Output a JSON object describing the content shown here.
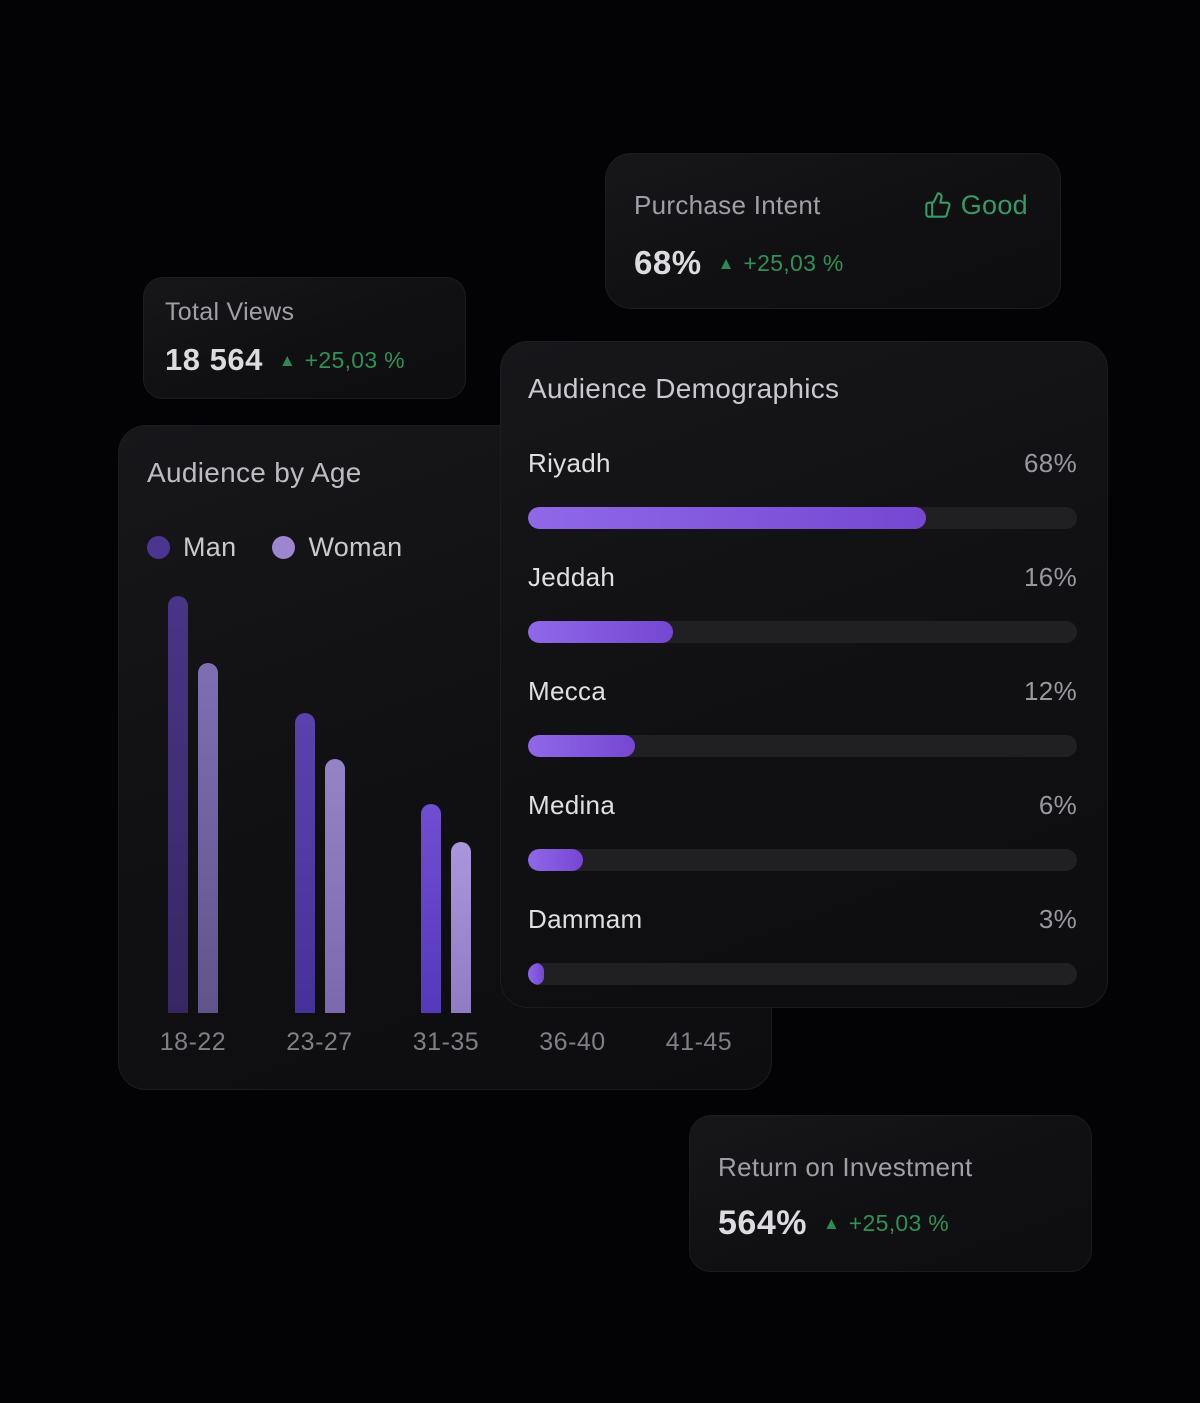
{
  "page": {
    "bg": "#030306"
  },
  "colors": {
    "green_text": "#2f9158",
    "green_icon": "#2c8a52",
    "badge_green": "#379a64",
    "purple_fill_start": "#8f68e8",
    "purple_fill_end": "#7647d2",
    "progress_track": "#202023",
    "legend_man": "#4a3691",
    "legend_woman": "#9c86cf"
  },
  "cards": {
    "total_views": {
      "title": "Total Views",
      "value": "18 564",
      "delta": "+25,03 %"
    },
    "purchase_intent": {
      "title": "Purchase Intent",
      "value": "68%",
      "delta": "+25,03 %",
      "badge": "Good"
    },
    "roi": {
      "title": "Return on Investment",
      "value": "564%",
      "delta": "+25,03 %"
    }
  },
  "chart_data": [
    {
      "type": "bar",
      "title": "Audience by Age",
      "categories": [
        "18-22",
        "23-27",
        "31-35",
        "36-40",
        "41-45"
      ],
      "series": [
        {
          "name": "Man",
          "values": [
            100,
            72,
            50,
            null,
            null
          ]
        },
        {
          "name": "Woman",
          "values": [
            84,
            61,
            41,
            null,
            null
          ]
        }
      ],
      "ylim": [
        0,
        100
      ],
      "grid": false,
      "legend_position": "top-left",
      "note": "values are relative bar heights (% of tallest bar); bars for 36-40 and 41-45 are hidden behind the overlapping Audience Demographics card",
      "man_gradients": [
        [
          "#483586",
          "#352862"
        ],
        [
          "#5a42ac",
          "#453299"
        ],
        [
          "#6f4fd0",
          "#5439bb"
        ]
      ],
      "woman_gradients": [
        [
          "#7e6fb3",
          "#61548c"
        ],
        [
          "#9484c5",
          "#7a69ad"
        ],
        [
          "#aa96da",
          "#8f7cc5"
        ]
      ]
    },
    {
      "type": "bar",
      "orientation": "horizontal",
      "title": "Audience Demographics",
      "categories": [
        "Riyadh",
        "Jeddah",
        "Mecca",
        "Medina",
        "Dammam"
      ],
      "values": [
        68,
        16,
        12,
        6,
        3
      ],
      "value_labels": [
        "68%",
        "16%",
        "12%",
        "6%",
        "3%"
      ],
      "fill_pct": [
        72.5,
        26.5,
        19.5,
        10,
        3
      ],
      "xlim": [
        0,
        100
      ],
      "grid": false
    }
  ]
}
